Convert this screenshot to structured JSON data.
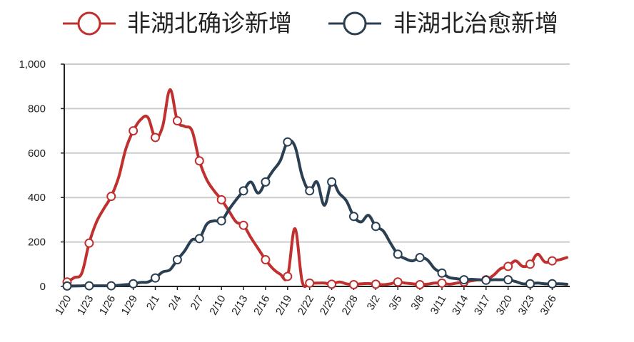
{
  "colors": {
    "confirmed": "#c0302e",
    "healed": "#2b3f52",
    "grid": "#cccccc",
    "axis": "#222222"
  },
  "chart_data": {
    "type": "line",
    "title": "",
    "xlabel": "",
    "ylabel": "",
    "ylim": [
      0,
      1000
    ],
    "yticks": [
      0,
      200,
      400,
      600,
      800,
      1000
    ],
    "ytick_labels": [
      "0",
      "200",
      "400",
      "600",
      "800",
      "1,000"
    ],
    "grid": true,
    "legend_position": "top",
    "x": [
      "1/20",
      "1/21",
      "1/22",
      "1/23",
      "1/24",
      "1/25",
      "1/26",
      "1/27",
      "1/28",
      "1/29",
      "1/30",
      "1/31",
      "2/1",
      "2/2",
      "2/3",
      "2/4",
      "2/5",
      "2/6",
      "2/7",
      "2/8",
      "2/9",
      "2/10",
      "2/11",
      "2/12",
      "2/13",
      "2/14",
      "2/15",
      "2/16",
      "2/17",
      "2/18",
      "2/19",
      "2/20",
      "2/21",
      "2/22",
      "2/23",
      "2/24",
      "2/25",
      "2/26",
      "2/27",
      "2/28",
      "2/29",
      "3/1",
      "3/2",
      "3/3",
      "3/4",
      "3/5",
      "3/6",
      "3/7",
      "3/8",
      "3/9",
      "3/10",
      "3/11",
      "3/12",
      "3/13",
      "3/14",
      "3/15",
      "3/16",
      "3/17",
      "3/18",
      "3/19",
      "3/20",
      "3/21",
      "3/22",
      "3/23",
      "3/24",
      "3/25",
      "3/26",
      "3/27",
      "3/28"
    ],
    "xtick_labels": [
      "1/20",
      "1/23",
      "1/26",
      "1/29",
      "2/1",
      "2/4",
      "2/7",
      "2/10",
      "2/13",
      "2/16",
      "2/19",
      "2/22",
      "2/25",
      "2/28",
      "3/2",
      "3/5",
      "3/8",
      "3/11",
      "3/14",
      "3/17",
      "3/20",
      "3/23",
      "3/26"
    ],
    "series": [
      {
        "name": "非湖北确诊新增",
        "color_key": "confirmed",
        "values": [
          20,
          40,
          60,
          195,
          290,
          350,
          405,
          490,
          620,
          700,
          750,
          760,
          670,
          720,
          885,
          745,
          720,
          700,
          565,
          480,
          430,
          390,
          340,
          290,
          275,
          220,
          170,
          120,
          80,
          55,
          45,
          260,
          20,
          15,
          15,
          15,
          10,
          20,
          12,
          8,
          12,
          13,
          10,
          8,
          12,
          20,
          15,
          12,
          8,
          10,
          15,
          15,
          10,
          15,
          20,
          25,
          30,
          30,
          50,
          80,
          90,
          115,
          90,
          100,
          145,
          110,
          115,
          120,
          130
        ],
        "markers": [
          0,
          3,
          6,
          9,
          12,
          15,
          18,
          21,
          24,
          27,
          30,
          33,
          36,
          39,
          42,
          45,
          48,
          51,
          54,
          57,
          60,
          63,
          66
        ]
      },
      {
        "name": "非湖北治愈新增",
        "color_key": "healed",
        "values": [
          2,
          2,
          3,
          3,
          3,
          3,
          3,
          5,
          8,
          12,
          18,
          20,
          38,
          65,
          75,
          120,
          160,
          210,
          215,
          280,
          295,
          295,
          345,
          390,
          430,
          470,
          420,
          470,
          520,
          565,
          650,
          630,
          495,
          430,
          470,
          365,
          470,
          420,
          385,
          315,
          290,
          320,
          270,
          250,
          195,
          145,
          125,
          115,
          130,
          120,
          80,
          60,
          40,
          35,
          30,
          32,
          30,
          28,
          30,
          30,
          30,
          22,
          12,
          12,
          15,
          12,
          12,
          12,
          10
        ],
        "markers": [
          0,
          3,
          6,
          9,
          12,
          15,
          18,
          21,
          24,
          27,
          30,
          33,
          36,
          39,
          42,
          45,
          48,
          51,
          54,
          57,
          60,
          63,
          66
        ]
      }
    ]
  }
}
